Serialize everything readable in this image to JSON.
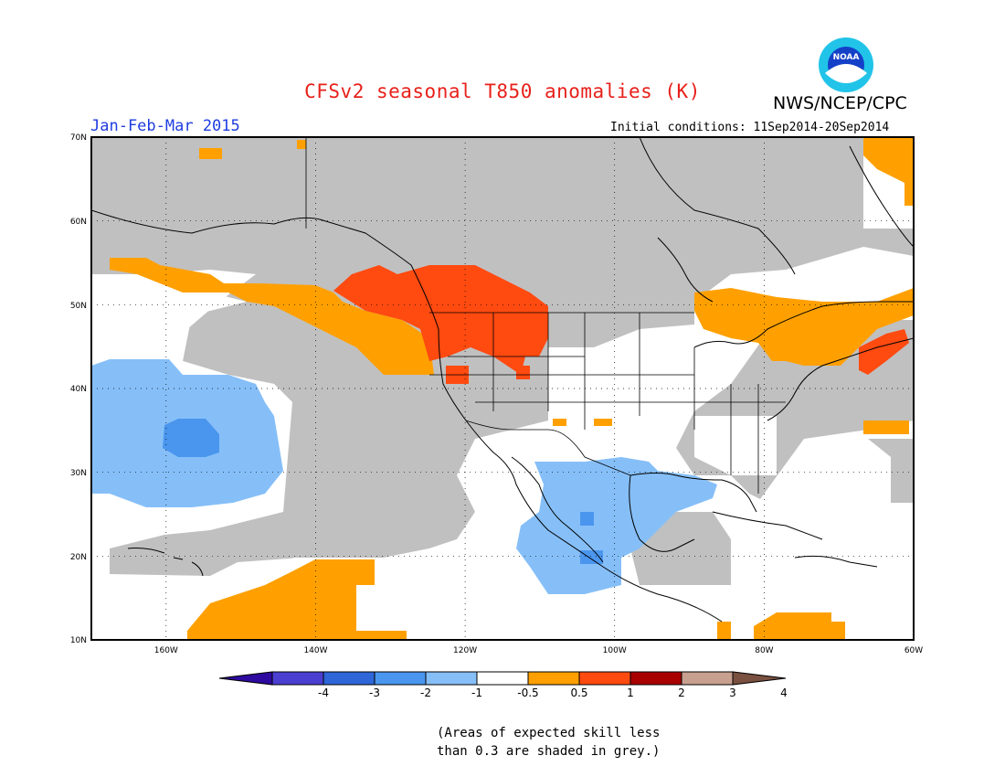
{
  "header": {
    "title": "CFSv2 seasonal T850 anomalies (K)",
    "org": "NWS/NCEP/CPC",
    "period": "Jan-Feb-Mar 2015",
    "initial_conditions": "Initial conditions: 11Sep2014-20Sep2014",
    "logo_text": "NOAA"
  },
  "map": {
    "lat_labels": [
      "70N",
      "60N",
      "50N",
      "40N",
      "30N",
      "20N",
      "10N"
    ],
    "lon_labels": [
      "160W",
      "140W",
      "120W",
      "100W",
      "80W",
      "60W"
    ]
  },
  "colorbar": {
    "labels": [
      "-4",
      "-3",
      "-2",
      "-1",
      "-0.5",
      "0.5",
      "1",
      "2",
      "3",
      "4"
    ],
    "colors": [
      "#2e0aa0",
      "#4a3fd0",
      "#2f66d8",
      "#4a96ee",
      "#86bff8",
      "#ffffff",
      "#ffa000",
      "#ff4a10",
      "#a80000",
      "#c8a090",
      "#7a5040"
    ]
  },
  "note": {
    "line1": "(Areas of expected skill less",
    "line2": "than 0.3 are shaded in grey.)"
  }
}
